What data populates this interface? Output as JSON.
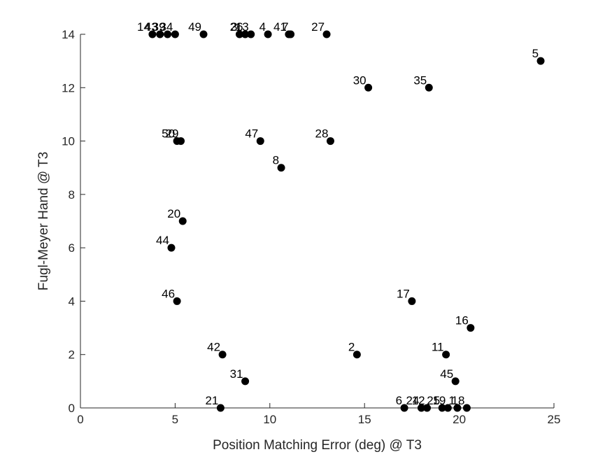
{
  "chart_data": {
    "type": "scatter",
    "title": "",
    "xlabel": "Position Matching Error (deg) @ T3",
    "ylabel": "Fugl-Meyer Hand @ T3",
    "xlim": [
      0,
      25
    ],
    "ylim": [
      0,
      14
    ],
    "xticks": [
      0,
      5,
      10,
      15,
      20,
      25
    ],
    "yticks": [
      0,
      2,
      4,
      6,
      8,
      10,
      12,
      14
    ],
    "grid": false,
    "marker_color": "#000000",
    "points": [
      {
        "label": "14",
        "x": 3.8,
        "y": 14
      },
      {
        "label": "43",
        "x": 4.2,
        "y": 14
      },
      {
        "label": "39",
        "x": 4.6,
        "y": 14
      },
      {
        "label": "34",
        "x": 5.0,
        "y": 14
      },
      {
        "label": "49",
        "x": 6.5,
        "y": 14
      },
      {
        "label": "3",
        "x": 8.4,
        "y": 14
      },
      {
        "label": "26",
        "x": 8.7,
        "y": 14
      },
      {
        "label": "13",
        "x": 9.0,
        "y": 14
      },
      {
        "label": "4",
        "x": 9.9,
        "y": 14
      },
      {
        "label": "41",
        "x": 11.0,
        "y": 14
      },
      {
        "label": "7",
        "x": 11.1,
        "y": 14
      },
      {
        "label": "27",
        "x": 13.0,
        "y": 14
      },
      {
        "label": "5",
        "x": 24.3,
        "y": 13
      },
      {
        "label": "30",
        "x": 15.2,
        "y": 12
      },
      {
        "label": "35",
        "x": 18.4,
        "y": 12
      },
      {
        "label": "50",
        "x": 5.1,
        "y": 10
      },
      {
        "label": "29",
        "x": 5.3,
        "y": 10
      },
      {
        "label": "47",
        "x": 9.5,
        "y": 10
      },
      {
        "label": "28",
        "x": 13.2,
        "y": 10
      },
      {
        "label": "8",
        "x": 10.6,
        "y": 9
      },
      {
        "label": "20",
        "x": 5.4,
        "y": 7
      },
      {
        "label": "44",
        "x": 4.8,
        "y": 6
      },
      {
        "label": "46",
        "x": 5.1,
        "y": 4
      },
      {
        "label": "17",
        "x": 17.5,
        "y": 4
      },
      {
        "label": "16",
        "x": 20.6,
        "y": 3
      },
      {
        "label": "42",
        "x": 7.5,
        "y": 2
      },
      {
        "label": "2",
        "x": 14.6,
        "y": 2
      },
      {
        "label": "11",
        "x": 19.3,
        "y": 2
      },
      {
        "label": "31",
        "x": 8.7,
        "y": 1
      },
      {
        "label": "45",
        "x": 19.8,
        "y": 1
      },
      {
        "label": "21",
        "x": 7.4,
        "y": 0
      },
      {
        "label": "6",
        "x": 17.1,
        "y": 0
      },
      {
        "label": "24",
        "x": 18.0,
        "y": 0
      },
      {
        "label": "12",
        "x": 18.3,
        "y": 0
      },
      {
        "label": "25",
        "x": 19.1,
        "y": 0
      },
      {
        "label": "19",
        "x": 19.4,
        "y": 0
      },
      {
        "label": "1",
        "x": 19.9,
        "y": 0
      },
      {
        "label": "18",
        "x": 20.4,
        "y": 0
      }
    ]
  }
}
